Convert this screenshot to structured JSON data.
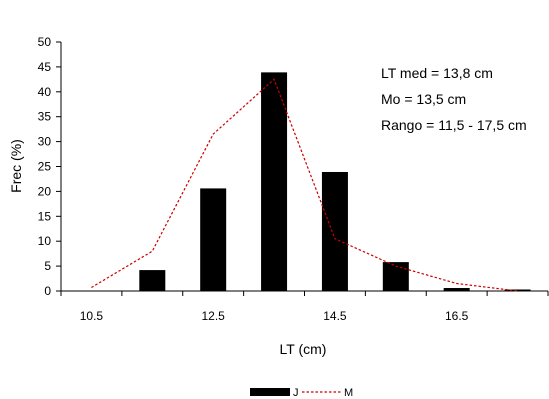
{
  "chart_data": {
    "type": "bar",
    "xlabel": "LT (cm)",
    "ylabel": "Frec (%)",
    "ylim": [
      0,
      50
    ],
    "y_ticks": [
      0,
      5,
      10,
      15,
      20,
      25,
      30,
      35,
      40,
      45,
      50
    ],
    "x_range": [
      10,
      18
    ],
    "x_tick_labels": [
      "10.5",
      "12.5",
      "14.5",
      "16.5"
    ],
    "x_tick_values": [
      10.5,
      12.5,
      14.5,
      16.5
    ],
    "grid": false,
    "legend_position": "bottom",
    "series": [
      {
        "name": "J",
        "kind": "bar",
        "color": "#000000",
        "x": [
          11.5,
          12.5,
          13.5,
          14.5,
          15.5,
          16.5,
          17.5
        ],
        "values": [
          4.2,
          20.6,
          43.9,
          23.9,
          5.8,
          0.6,
          0.3
        ]
      },
      {
        "name": "M",
        "kind": "line",
        "color": "#cc0000",
        "line_style": "dashed",
        "x": [
          10.5,
          11.5,
          12.5,
          13.5,
          14.5,
          15.5,
          16.5,
          17.5
        ],
        "values": [
          0.7,
          8,
          31.5,
          42.5,
          10.5,
          5,
          1.5,
          0
        ]
      }
    ],
    "annotations": [
      "LT med = 13,8 cm",
      "Mo =  13,5 cm",
      "Rango = 11,5 - 17,5 cm"
    ]
  }
}
